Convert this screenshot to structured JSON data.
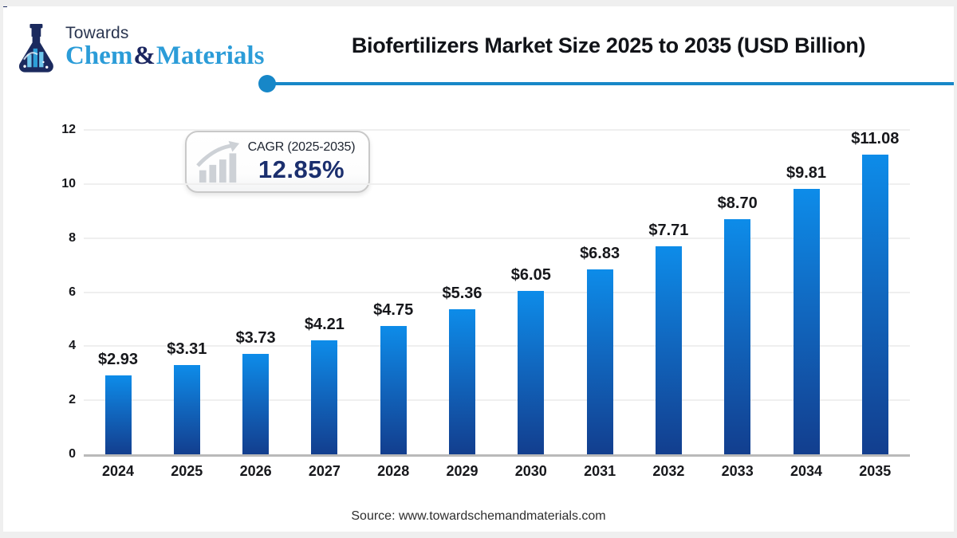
{
  "logo": {
    "top_text": "Towards",
    "brand_part1": "Chem",
    "brand_amp": "&",
    "brand_part2": "Materials"
  },
  "header": {
    "title": "Biofertilizers Market Size 2025 to 2035 (USD Billion)"
  },
  "cagr_badge": {
    "label": "CAGR (2025-2035)",
    "value": "12.85%",
    "icon": "growth-bars-arrow-icon"
  },
  "source": {
    "text": "Source: www.towardschemandmaterials.com"
  },
  "colors": {
    "accent_line": "#1787c8",
    "bar_gradient_top": "#0d8ce9",
    "bar_gradient_mid": "#1168c0",
    "bar_gradient_bottom": "#123e8e",
    "navy_text": "#1b2f6e",
    "logo_blue": "#2b9cd8",
    "logo_navy": "#1b2660",
    "gridline": "#efefef",
    "axis_baseline": "#b9b9b9"
  },
  "chart_data": {
    "type": "bar",
    "title": "Biofertilizers Market Size 2025 to 2035 (USD Billion)",
    "xlabel": "",
    "ylabel": "",
    "categories": [
      "2024",
      "2025",
      "2026",
      "2027",
      "2028",
      "2029",
      "2030",
      "2031",
      "2032",
      "2033",
      "2034",
      "2035"
    ],
    "values": [
      2.93,
      3.31,
      3.73,
      4.21,
      4.75,
      5.36,
      6.05,
      6.83,
      7.71,
      8.7,
      9.81,
      11.08
    ],
    "value_labels": [
      "$2.93",
      "$3.31",
      "$3.73",
      "$4.21",
      "$4.75",
      "$5.36",
      "$6.05",
      "$6.83",
      "$7.71",
      "$8.70",
      "$9.81",
      "$11.08"
    ],
    "ylim": [
      0,
      12
    ],
    "yticks": [
      0,
      2,
      4,
      6,
      8,
      10,
      12
    ],
    "grid": true,
    "legend": "none",
    "annotation": "CAGR (2025-2035) 12.85%"
  }
}
